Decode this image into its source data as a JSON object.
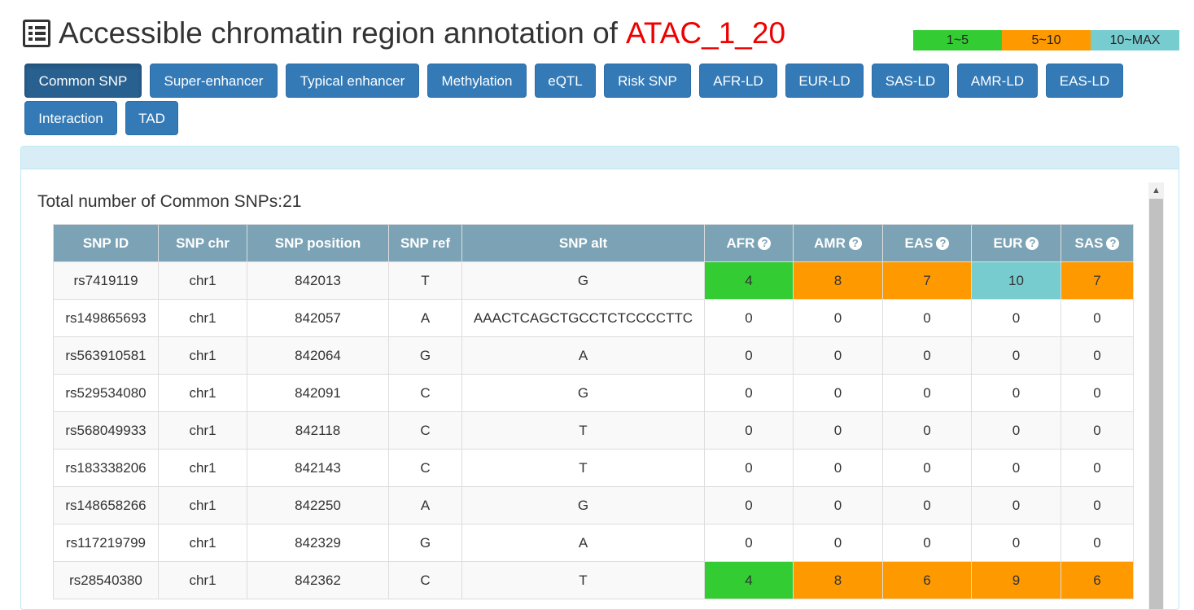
{
  "header": {
    "title": "Accessible chromatin region annotation of",
    "region_id": "ATAC_1_20",
    "icon": "list-alt-icon"
  },
  "legend": [
    {
      "label": "1~5",
      "color": "#33cc33"
    },
    {
      "label": "5~10",
      "color": "#ff9900"
    },
    {
      "label": "10~MAX",
      "color": "#77ccd0"
    }
  ],
  "tabs": [
    "Common SNP",
    "Super-enhancer",
    "Typical enhancer",
    "Methylation",
    "eQTL",
    "Risk SNP",
    "AFR-LD",
    "EUR-LD",
    "SAS-LD",
    "AMR-LD",
    "EAS-LD",
    "Interaction",
    "TAD"
  ],
  "active_tab": "Common SNP",
  "panel": {
    "total_label": "Total number of Common SNPs:21"
  },
  "table": {
    "columns": [
      "SNP ID",
      "SNP chr",
      "SNP position",
      "SNP ref",
      "SNP alt",
      "AFR",
      "AMR",
      "EAS",
      "EUR",
      "SAS"
    ],
    "help_icon": "question-circle-icon",
    "rows": [
      [
        "rs7419119",
        "chr1",
        "842013",
        "T",
        "G",
        "4",
        "8",
        "7",
        "10",
        "7"
      ],
      [
        "rs149865693",
        "chr1",
        "842057",
        "A",
        "AAACTCAGCTGCCTCTCCCCTTC",
        "0",
        "0",
        "0",
        "0",
        "0"
      ],
      [
        "rs563910581",
        "chr1",
        "842064",
        "G",
        "A",
        "0",
        "0",
        "0",
        "0",
        "0"
      ],
      [
        "rs529534080",
        "chr1",
        "842091",
        "C",
        "G",
        "0",
        "0",
        "0",
        "0",
        "0"
      ],
      [
        "rs568049933",
        "chr1",
        "842118",
        "C",
        "T",
        "0",
        "0",
        "0",
        "0",
        "0"
      ],
      [
        "rs183338206",
        "chr1",
        "842143",
        "C",
        "T",
        "0",
        "0",
        "0",
        "0",
        "0"
      ],
      [
        "rs148658266",
        "chr1",
        "842250",
        "A",
        "G",
        "0",
        "0",
        "0",
        "0",
        "0"
      ],
      [
        "rs117219799",
        "chr1",
        "842329",
        "G",
        "A",
        "0",
        "0",
        "0",
        "0",
        "0"
      ],
      [
        "rs28540380",
        "chr1",
        "842362",
        "C",
        "T",
        "4",
        "8",
        "6",
        "9",
        "6"
      ]
    ]
  }
}
